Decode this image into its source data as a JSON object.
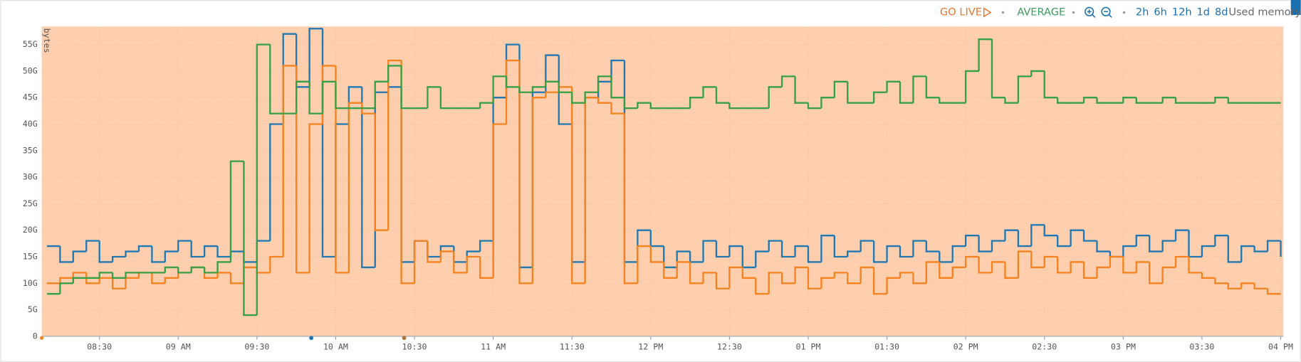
{
  "toolbar": {
    "go_live": "GO LIVE",
    "average": "AVERAGE",
    "timeframes": [
      "2h",
      "6h",
      "12h",
      "1d",
      "8d"
    ],
    "chart_label": "Used memory"
  },
  "chart_data": {
    "type": "line",
    "step": true,
    "y_label": "bytes",
    "grid": true,
    "background": "#fdcfae",
    "xlim": [
      488,
      961
    ],
    "xticks": [
      {
        "value": 510,
        "label": "08:30"
      },
      {
        "value": 540,
        "label": "09 AM"
      },
      {
        "value": 570,
        "label": "09:30"
      },
      {
        "value": 600,
        "label": "10 AM"
      },
      {
        "value": 630,
        "label": "10:30"
      },
      {
        "value": 660,
        "label": "11 AM"
      },
      {
        "value": 690,
        "label": "11:30"
      },
      {
        "value": 720,
        "label": "12 PM"
      },
      {
        "value": 750,
        "label": "12:30"
      },
      {
        "value": 780,
        "label": "01 PM"
      },
      {
        "value": 810,
        "label": "01:30"
      },
      {
        "value": 840,
        "label": "02 PM"
      },
      {
        "value": 870,
        "label": "02:30"
      },
      {
        "value": 900,
        "label": "03 PM"
      },
      {
        "value": 930,
        "label": "03:30"
      },
      {
        "value": 960,
        "label": "04 PM"
      }
    ],
    "ylim": [
      0,
      58.4
    ],
    "yticks": [
      0,
      {
        "value": 5,
        "label": "5G"
      },
      {
        "value": 10,
        "label": "10G"
      },
      {
        "value": 15,
        "label": "15G"
      },
      {
        "value": 20,
        "label": "20G"
      },
      {
        "value": 25,
        "label": "25G"
      },
      {
        "value": 30,
        "label": "30G"
      },
      {
        "value": 35,
        "label": "35G"
      },
      {
        "value": 40,
        "label": "40G"
      },
      {
        "value": 45,
        "label": "45G"
      },
      {
        "value": 50,
        "label": "50G"
      },
      {
        "value": 55,
        "label": "55G"
      }
    ],
    "x": [
      490,
      495,
      500,
      505,
      510,
      515,
      520,
      525,
      530,
      535,
      540,
      545,
      550,
      555,
      560,
      565,
      570,
      575,
      580,
      585,
      590,
      595,
      600,
      605,
      610,
      615,
      620,
      625,
      630,
      635,
      640,
      645,
      650,
      655,
      660,
      665,
      670,
      675,
      680,
      685,
      690,
      695,
      700,
      705,
      710,
      715,
      720,
      725,
      730,
      735,
      740,
      745,
      750,
      755,
      760,
      765,
      770,
      775,
      780,
      785,
      790,
      795,
      800,
      805,
      810,
      815,
      820,
      825,
      830,
      835,
      840,
      845,
      850,
      855,
      860,
      865,
      870,
      875,
      880,
      885,
      890,
      895,
      900,
      905,
      910,
      915,
      920,
      925,
      930,
      935,
      940,
      945,
      950,
      955,
      960
    ],
    "series": [
      {
        "color": "#1f78b4",
        "values": [
          17,
          14,
          16,
          18,
          14,
          15,
          16,
          17,
          14,
          16,
          18,
          15,
          17,
          15,
          16,
          14,
          18,
          40,
          57,
          47,
          58,
          15,
          40,
          47,
          13,
          46,
          47,
          14,
          18,
          15,
          17,
          14,
          16,
          18,
          45,
          55,
          13,
          46,
          53,
          40,
          14,
          45,
          48,
          52,
          14,
          20,
          17,
          13,
          16,
          14,
          18,
          15,
          17,
          13,
          16,
          18,
          15,
          17,
          14,
          19,
          15,
          16,
          18,
          14,
          17,
          15,
          18,
          16,
          14,
          17,
          19,
          16,
          18,
          20,
          17,
          21,
          19,
          17,
          20,
          18,
          16,
          15,
          17,
          19,
          16,
          18,
          20,
          15,
          17,
          19,
          14,
          17,
          16,
          18,
          15
        ]
      },
      {
        "color": "#f5821f",
        "values": [
          10,
          11,
          12,
          10,
          11,
          9,
          11,
          12,
          10,
          11,
          12,
          13,
          11,
          12,
          10,
          13,
          12,
          15,
          51,
          12,
          40,
          51,
          12,
          44,
          42,
          20,
          52,
          10,
          18,
          14,
          16,
          12,
          15,
          11,
          40,
          52,
          10,
          45,
          46,
          47,
          10,
          45,
          44,
          42,
          10,
          17,
          14,
          11,
          14,
          10,
          12,
          9,
          13,
          11,
          8,
          12,
          10,
          13,
          9,
          11,
          12,
          10,
          13,
          8,
          11,
          12,
          10,
          14,
          11,
          13,
          15,
          12,
          14,
          11,
          16,
          13,
          15,
          12,
          14,
          11,
          13,
          15,
          12,
          14,
          10,
          13,
          15,
          12,
          11,
          10,
          9,
          10,
          9,
          8,
          8
        ]
      },
      {
        "color": "#35a046",
        "values": [
          8,
          10,
          11,
          11,
          12,
          11,
          12,
          12,
          12,
          13,
          12,
          13,
          12,
          14,
          33,
          4,
          55,
          42,
          42,
          48,
          42,
          48,
          43,
          43,
          43,
          48,
          51,
          43,
          43,
          47,
          43,
          43,
          43,
          44,
          49,
          47,
          46,
          47,
          48,
          46,
          44,
          46,
          49,
          45,
          43,
          44,
          43,
          43,
          43,
          45,
          47,
          44,
          43,
          43,
          43,
          47,
          49,
          44,
          43,
          45,
          48,
          44,
          44,
          46,
          48,
          44,
          49,
          45,
          44,
          44,
          50,
          56,
          45,
          44,
          49,
          50,
          45,
          44,
          44,
          45,
          44,
          44,
          45,
          44,
          44,
          45,
          44,
          44,
          44,
          45,
          44,
          44,
          44,
          44,
          44
        ]
      }
    ]
  }
}
